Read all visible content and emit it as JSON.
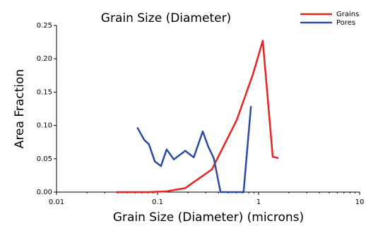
{
  "chart_data": {
    "type": "line",
    "title": "Grain Size (Diameter)",
    "x_label": "Grain Size (Diameter) (microns)",
    "y_label": "Area Fraction",
    "xscale": "log",
    "xlim": [
      0.01,
      10
    ],
    "xticks": [
      0.01,
      0.1,
      1,
      10
    ],
    "ylim": [
      0,
      0.25
    ],
    "yticks": [
      {
        "value": 0,
        "label": "0.00"
      },
      {
        "value": 0.05,
        "label": "0.05"
      },
      {
        "value": 0.1,
        "label": "0.10"
      },
      {
        "value": 0.15,
        "label": "0.15"
      },
      {
        "value": 0.2,
        "label": "0.20"
      },
      {
        "value": 0.25,
        "label": "0.25"
      }
    ],
    "legend": "upper right",
    "series": [
      {
        "name": "Grains",
        "color": "#e8231f",
        "x": [
          0.039,
          0.054,
          0.081,
          0.121,
          0.188,
          0.345,
          0.607,
          0.88,
          1.1,
          1.38,
          1.57
        ],
        "values": [
          0,
          0,
          0,
          0.001,
          0.006,
          0.034,
          0.108,
          0.177,
          0.227,
          0.053,
          0.051
        ]
      },
      {
        "name": "Pores",
        "color": "#2b4aa8",
        "x": [
          0.063,
          0.074,
          0.082,
          0.094,
          0.108,
          0.123,
          0.145,
          0.188,
          0.228,
          0.28,
          0.318,
          0.36,
          0.42,
          0.71,
          0.84
        ],
        "values": [
          0.097,
          0.078,
          0.072,
          0.046,
          0.039,
          0.064,
          0.049,
          0.062,
          0.052,
          0.091,
          0.068,
          0.051,
          0,
          0,
          0.129
        ]
      }
    ]
  }
}
